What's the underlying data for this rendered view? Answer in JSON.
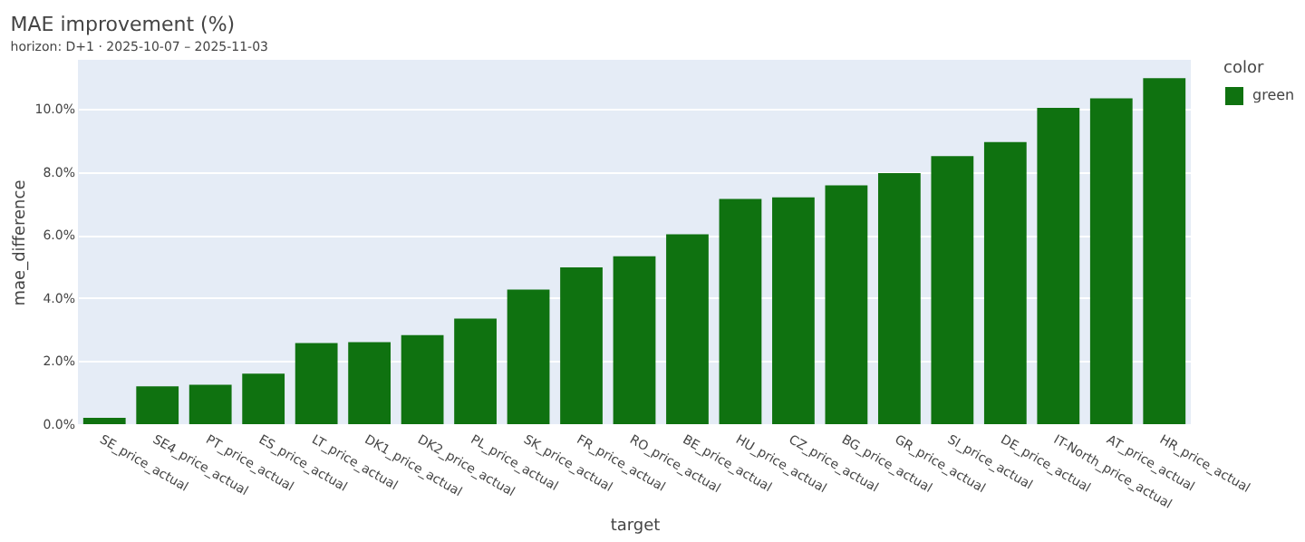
{
  "chart_data": {
    "type": "bar",
    "title": "MAE improvement (%)",
    "subtitle": "horizon: D+1 · 2025-10-07 – 2025-11-03",
    "xlabel": "target",
    "ylabel": "mae_difference",
    "legend_title": "color",
    "categories": [
      "SE_price_actual",
      "SE4_price_actual",
      "PT_price_actual",
      "ES_price_actual",
      "LT_price_actual",
      "DK1_price_actual",
      "DK2_price_actual",
      "PL_price_actual",
      "SK_price_actual",
      "FR_price_actual",
      "RO_price_actual",
      "BE_price_actual",
      "HU_price_actual",
      "CZ_price_actual",
      "BG_price_actual",
      "GR_price_actual",
      "SI_price_actual",
      "DE_price_actual",
      "IT-North_price_actual",
      "AT_price_actual",
      "HR_price_actual"
    ],
    "series": [
      {
        "name": "green",
        "color": "#0f7210",
        "values": [
          0.2,
          1.2,
          1.25,
          1.6,
          2.57,
          2.6,
          2.82,
          3.35,
          4.27,
          4.97,
          5.32,
          6.02,
          7.14,
          7.19,
          7.57,
          7.96,
          8.5,
          8.94,
          10.03,
          10.33,
          10.97
        ]
      }
    ],
    "ylim": [
      0,
      11.55
    ],
    "yticks": [
      {
        "value": 0,
        "label": "0.0%"
      },
      {
        "value": 2,
        "label": "2.0%"
      },
      {
        "value": 4,
        "label": "4.0%"
      },
      {
        "value": 6,
        "label": "6.0%"
      },
      {
        "value": 8,
        "label": "8.0%"
      },
      {
        "value": 10,
        "label": "10.0%"
      }
    ],
    "grid": "y",
    "legend": "top right"
  }
}
